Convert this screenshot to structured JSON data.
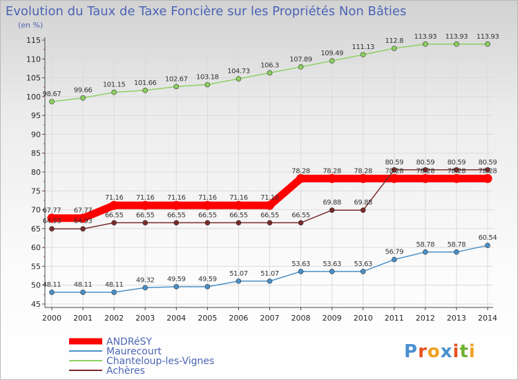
{
  "chart_data": {
    "type": "line",
    "title": "Evolution du Taux de Taxe Foncière sur les Propriétés Non Bâties",
    "unit_label": "(en %)",
    "xlabel": "",
    "ylabel": "",
    "ylim": [
      45,
      115
    ],
    "y_ticks": [
      45,
      50,
      55,
      60,
      65,
      70,
      75,
      80,
      85,
      90,
      95,
      100,
      105,
      110,
      115
    ],
    "x": [
      "2000",
      "2001",
      "2002",
      "2003",
      "2004",
      "2005",
      "2006",
      "2007",
      "2008",
      "2009",
      "2010",
      "2011",
      "2012",
      "2013",
      "2014"
    ],
    "grid": true,
    "legend_position": "bottom-left",
    "series": [
      {
        "name": "ANDRéSY",
        "color": "#ff0000",
        "values": [
          67.77,
          67.77,
          71.16,
          71.16,
          71.16,
          71.16,
          71.16,
          71.16,
          78.28,
          78.28,
          78.28,
          78.28,
          78.28,
          78.28,
          78.28
        ],
        "labels": [
          "67.77",
          "67.77",
          "71.16",
          "71.16",
          "71.16",
          "71.16",
          "71.16",
          "71.16",
          "78.28",
          "78.28",
          "78.28",
          "78.28",
          "78.28",
          "78.28",
          "78.28"
        ]
      },
      {
        "name": "Maurecourt",
        "color": "#4a90c8",
        "values": [
          48.11,
          48.11,
          48.11,
          49.32,
          49.59,
          49.59,
          51.07,
          51.07,
          53.63,
          53.63,
          53.63,
          56.79,
          58.78,
          58.78,
          60.54
        ],
        "labels": [
          "48.11",
          "48.11",
          "48.11",
          "49.32",
          "49.59",
          "49.59",
          "51.07",
          "51.07",
          "53.63",
          "53.63",
          "53.63",
          "56.79",
          "58.78",
          "58.78",
          "60.54"
        ]
      },
      {
        "name": "Chanteloup-les-Vignes",
        "color": "#8cd060",
        "values": [
          98.67,
          99.66,
          101.15,
          101.66,
          102.67,
          103.18,
          104.73,
          106.3,
          107.89,
          109.49,
          111.13,
          112.8,
          113.93,
          113.93,
          113.93
        ],
        "labels": [
          "98.67",
          "99.66",
          "101.15",
          "101.66",
          "102.67",
          "103.18",
          "104.73",
          "106.3",
          "107.89",
          "109.49",
          "111.13",
          "112.8",
          "113.93",
          "113.93",
          "113.93"
        ]
      },
      {
        "name": "Achères",
        "color": "#7a2a2a",
        "values": [
          64.93,
          64.93,
          66.55,
          66.55,
          66.55,
          66.55,
          66.55,
          66.55,
          66.55,
          69.88,
          69.88,
          80.59,
          80.59,
          80.59,
          80.59
        ],
        "labels": [
          "64.93",
          "64.93",
          "66.55",
          "66.55",
          "66.55",
          "66.55",
          "66.55",
          "66.55",
          "66.55",
          "69.88",
          "69.88",
          "80.59",
          "80.59",
          "80.59",
          "80.59"
        ]
      }
    ]
  },
  "branding": {
    "logo_text": "Proxiti"
  }
}
